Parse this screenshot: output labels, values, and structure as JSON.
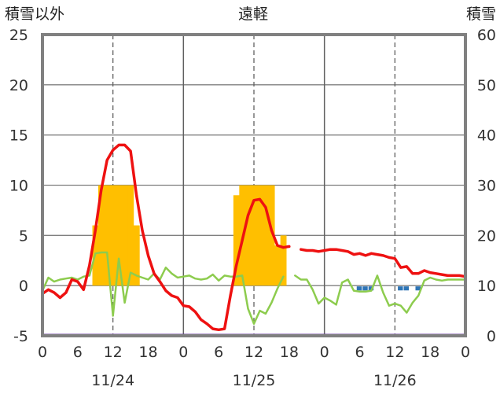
{
  "chart_data": {
    "type": "bar",
    "title": "遠軽",
    "left_axis_label": "積雪以外",
    "right_axis_label": "積雪",
    "y_left_ticks": [
      "25",
      "20",
      "15",
      "10",
      "5",
      "0",
      "-5"
    ],
    "y_right_ticks": [
      "60",
      "50",
      "40",
      "30",
      "20",
      "10",
      "0"
    ],
    "ylim_left": [
      -5,
      25
    ],
    "ylim_right": [
      0,
      60
    ],
    "x_hour_ticks": [
      "0",
      "6",
      "12",
      "18",
      "0",
      "6",
      "12",
      "18",
      "0",
      "6",
      "12",
      "18",
      "0"
    ],
    "dates": [
      "11/24",
      "11/25",
      "11/26"
    ],
    "colors": {
      "snowfall": "#FFBF00",
      "temperature": "#EE1111",
      "green_series": "#8DCC4E",
      "snow_depth": "#6A3AA0",
      "negative_bars": "#2E75B6",
      "frame": "#808080"
    },
    "snowfall_bars": [
      {
        "x": 9,
        "y": 6
      },
      {
        "x": 10,
        "y": 10
      },
      {
        "x": 11,
        "y": 10
      },
      {
        "x": 12,
        "y": 10
      },
      {
        "x": 13,
        "y": 10
      },
      {
        "x": 14,
        "y": 10
      },
      {
        "x": 15,
        "y": 10
      },
      {
        "x": 16,
        "y": 6
      },
      {
        "x": 33,
        "y": 9
      },
      {
        "x": 34,
        "y": 10
      },
      {
        "x": 35,
        "y": 10
      },
      {
        "x": 36,
        "y": 10
      },
      {
        "x": 37,
        "y": 10
      },
      {
        "x": 38,
        "y": 10
      },
      {
        "x": 39,
        "y": 10
      },
      {
        "x": 40,
        "y": 4
      },
      {
        "x": 41,
        "y": 5
      }
    ],
    "negative_bars": [
      {
        "x": 54,
        "y": -0.4
      },
      {
        "x": 55,
        "y": -0.4
      },
      {
        "x": 56,
        "y": -0.4
      },
      {
        "x": 61,
        "y": -0.4
      },
      {
        "x": 62,
        "y": -0.4
      },
      {
        "x": 64,
        "y": -0.4
      }
    ],
    "temperature": [
      [
        0,
        -0.8
      ],
      [
        1,
        -0.4
      ],
      [
        2,
        -0.7
      ],
      [
        3,
        -1.2
      ],
      [
        4,
        -0.7
      ],
      [
        5,
        0.6
      ],
      [
        6,
        0.4
      ],
      [
        7,
        -0.4
      ],
      [
        8,
        2.0
      ],
      [
        9,
        5.5
      ],
      [
        10,
        9.5
      ],
      [
        11,
        12.5
      ],
      [
        12,
        13.5
      ],
      [
        13,
        14.0
      ],
      [
        14,
        14.0
      ],
      [
        15,
        13.4
      ],
      [
        16,
        9.0
      ],
      [
        17,
        5.5
      ],
      [
        18,
        3.0
      ],
      [
        19,
        1.2
      ],
      [
        20,
        0.4
      ],
      [
        21,
        -0.5
      ],
      [
        22,
        -1.0
      ],
      [
        23,
        -1.2
      ],
      [
        24,
        -2.0
      ],
      [
        25,
        -2.1
      ],
      [
        26,
        -2.6
      ],
      [
        27,
        -3.4
      ],
      [
        28,
        -3.8
      ],
      [
        29,
        -4.3
      ],
      [
        30,
        -4.4
      ],
      [
        31,
        -4.3
      ],
      [
        32,
        -1.0
      ],
      [
        33,
        2.0
      ],
      [
        34,
        4.5
      ],
      [
        35,
        7.0
      ],
      [
        36,
        8.5
      ],
      [
        37,
        8.6
      ],
      [
        38,
        7.8
      ],
      [
        39,
        5.5
      ],
      [
        40,
        4.0
      ],
      [
        41,
        3.8
      ],
      [
        42,
        3.9
      ],
      [
        43,
        null
      ],
      [
        44,
        3.6
      ],
      [
        45,
        3.5
      ],
      [
        46,
        3.5
      ],
      [
        47,
        3.4
      ],
      [
        48,
        3.5
      ],
      [
        49,
        3.6
      ],
      [
        50,
        3.6
      ],
      [
        51,
        3.5
      ],
      [
        52,
        3.4
      ],
      [
        53,
        3.1
      ],
      [
        54,
        3.2
      ],
      [
        55,
        3.0
      ],
      [
        56,
        3.2
      ],
      [
        57,
        3.1
      ],
      [
        58,
        3.0
      ],
      [
        59,
        2.8
      ],
      [
        60,
        2.7
      ],
      [
        61,
        1.8
      ],
      [
        62,
        1.9
      ],
      [
        63,
        1.2
      ],
      [
        64,
        1.2
      ],
      [
        65,
        1.5
      ],
      [
        66,
        1.3
      ],
      [
        67,
        1.2
      ],
      [
        68,
        1.1
      ],
      [
        69,
        1.0
      ],
      [
        70,
        1.0
      ],
      [
        71,
        1.0
      ],
      [
        72,
        0.9
      ]
    ],
    "green_series": [
      [
        0,
        -0.5
      ],
      [
        1,
        0.8
      ],
      [
        2,
        0.4
      ],
      [
        3,
        0.6
      ],
      [
        4,
        0.7
      ],
      [
        5,
        0.8
      ],
      [
        6,
        0.6
      ],
      [
        7,
        0.9
      ],
      [
        8,
        1.0
      ],
      [
        9,
        3.2
      ],
      [
        10,
        3.3
      ],
      [
        11,
        3.3
      ],
      [
        12,
        -3.0
      ],
      [
        13,
        2.7
      ],
      [
        14,
        -1.7
      ],
      [
        15,
        1.3
      ],
      [
        16,
        1.0
      ],
      [
        17,
        0.8
      ],
      [
        18,
        0.6
      ],
      [
        19,
        1.2
      ],
      [
        20,
        0.6
      ],
      [
        21,
        1.8
      ],
      [
        22,
        1.2
      ],
      [
        23,
        0.8
      ],
      [
        24,
        0.9
      ],
      [
        25,
        1.0
      ],
      [
        26,
        0.7
      ],
      [
        27,
        0.6
      ],
      [
        28,
        0.7
      ],
      [
        29,
        1.1
      ],
      [
        30,
        0.5
      ],
      [
        31,
        1.0
      ],
      [
        32,
        0.9
      ],
      [
        33,
        0.9
      ],
      [
        34,
        1.0
      ],
      [
        35,
        -2.3
      ],
      [
        36,
        -3.8
      ],
      [
        37,
        -2.5
      ],
      [
        38,
        -2.8
      ],
      [
        39,
        -1.7
      ],
      [
        40,
        -0.3
      ],
      [
        41,
        0.9
      ],
      [
        42,
        null
      ],
      [
        43,
        1.0
      ],
      [
        44,
        0.6
      ],
      [
        45,
        0.6
      ],
      [
        46,
        -0.4
      ],
      [
        47,
        -1.8
      ],
      [
        48,
        -1.2
      ],
      [
        49,
        -1.5
      ],
      [
        50,
        -1.9
      ],
      [
        51,
        0.3
      ],
      [
        52,
        0.6
      ],
      [
        53,
        -0.5
      ],
      [
        54,
        -0.6
      ],
      [
        55,
        -0.6
      ],
      [
        56,
        -0.5
      ],
      [
        57,
        1.0
      ],
      [
        58,
        -0.7
      ],
      [
        59,
        -2.0
      ],
      [
        60,
        -1.8
      ],
      [
        61,
        -2.0
      ],
      [
        62,
        -2.7
      ],
      [
        63,
        -1.7
      ],
      [
        64,
        -1.0
      ],
      [
        65,
        0.5
      ],
      [
        66,
        0.8
      ],
      [
        67,
        0.6
      ],
      [
        68,
        0.5
      ],
      [
        69,
        0.6
      ],
      [
        70,
        0.6
      ],
      [
        71,
        0.6
      ],
      [
        72,
        0.6
      ]
    ],
    "snow_depth": [
      [
        0,
        0
      ],
      [
        72,
        0
      ]
    ]
  }
}
